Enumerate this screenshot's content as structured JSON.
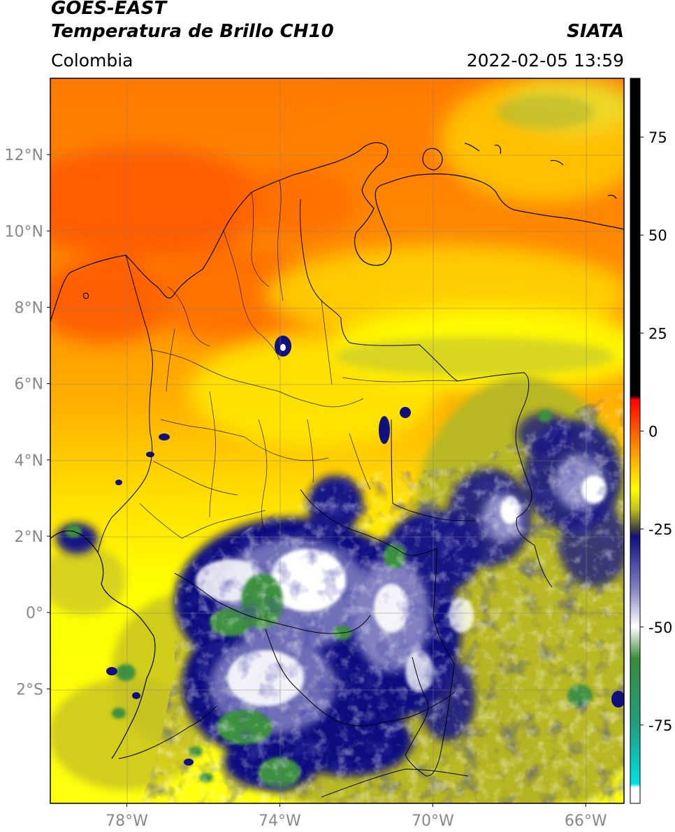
{
  "header": {
    "satellite": "GOES-EAST",
    "product": "Temperatura de Brillo CH10",
    "region": "Colombia",
    "agency": "SIATA",
    "datetime": "2022-02-05 13:59"
  },
  "map": {
    "lon_range": [
      -80,
      -65
    ],
    "lat_range": [
      -5,
      14
    ],
    "lat_ticks": [
      {
        "value": 12,
        "label": "12°N"
      },
      {
        "value": 10,
        "label": "10°N"
      },
      {
        "value": 8,
        "label": "8°N"
      },
      {
        "value": 6,
        "label": "6°N"
      },
      {
        "value": 4,
        "label": "4°N"
      },
      {
        "value": 2,
        "label": "2°N"
      },
      {
        "value": 0,
        "label": "0°"
      },
      {
        "value": -2,
        "label": "2°S"
      }
    ],
    "lon_ticks": [
      {
        "value": -78,
        "label": "78°W"
      },
      {
        "value": -74,
        "label": "74°W"
      },
      {
        "value": -70,
        "label": "70°W"
      },
      {
        "value": -66,
        "label": "66°W"
      }
    ],
    "colors": {
      "warm": "#ff5a00",
      "mid": "#ffa000",
      "yellow": "#ffff00",
      "olive": "#b8b820",
      "navy": "#101080",
      "white": "#ffffff",
      "green": "#3c9040"
    }
  },
  "colorbar": {
    "range": [
      -95,
      90
    ],
    "ticks": [
      {
        "value": 75,
        "label": "75"
      },
      {
        "value": 50,
        "label": "50"
      },
      {
        "value": 25,
        "label": "25"
      },
      {
        "value": 0,
        "label": "0"
      },
      {
        "value": -25,
        "label": "-25"
      },
      {
        "value": -50,
        "label": "-50"
      },
      {
        "value": -75,
        "label": "-75"
      }
    ],
    "stops": [
      {
        "value": 90,
        "color": "#000000"
      },
      {
        "value": 9,
        "color": "#000000"
      },
      {
        "value": 8,
        "color": "#ff0000"
      },
      {
        "value": -3,
        "color": "#ff8000"
      },
      {
        "value": -10,
        "color": "#ffcc00"
      },
      {
        "value": -15,
        "color": "#ffff00"
      },
      {
        "value": -20,
        "color": "#c0c020"
      },
      {
        "value": -25,
        "color": "#404040"
      },
      {
        "value": -27,
        "color": "#101080"
      },
      {
        "value": -40,
        "color": "#8080c0"
      },
      {
        "value": -50,
        "color": "#ffffff"
      },
      {
        "value": -58,
        "color": "#3a8a3a"
      },
      {
        "value": -75,
        "color": "#20a080"
      },
      {
        "value": -90,
        "color": "#00e0e0"
      },
      {
        "value": -91,
        "color": "#ffffff"
      },
      {
        "value": -95,
        "color": "#ffffff"
      }
    ]
  }
}
